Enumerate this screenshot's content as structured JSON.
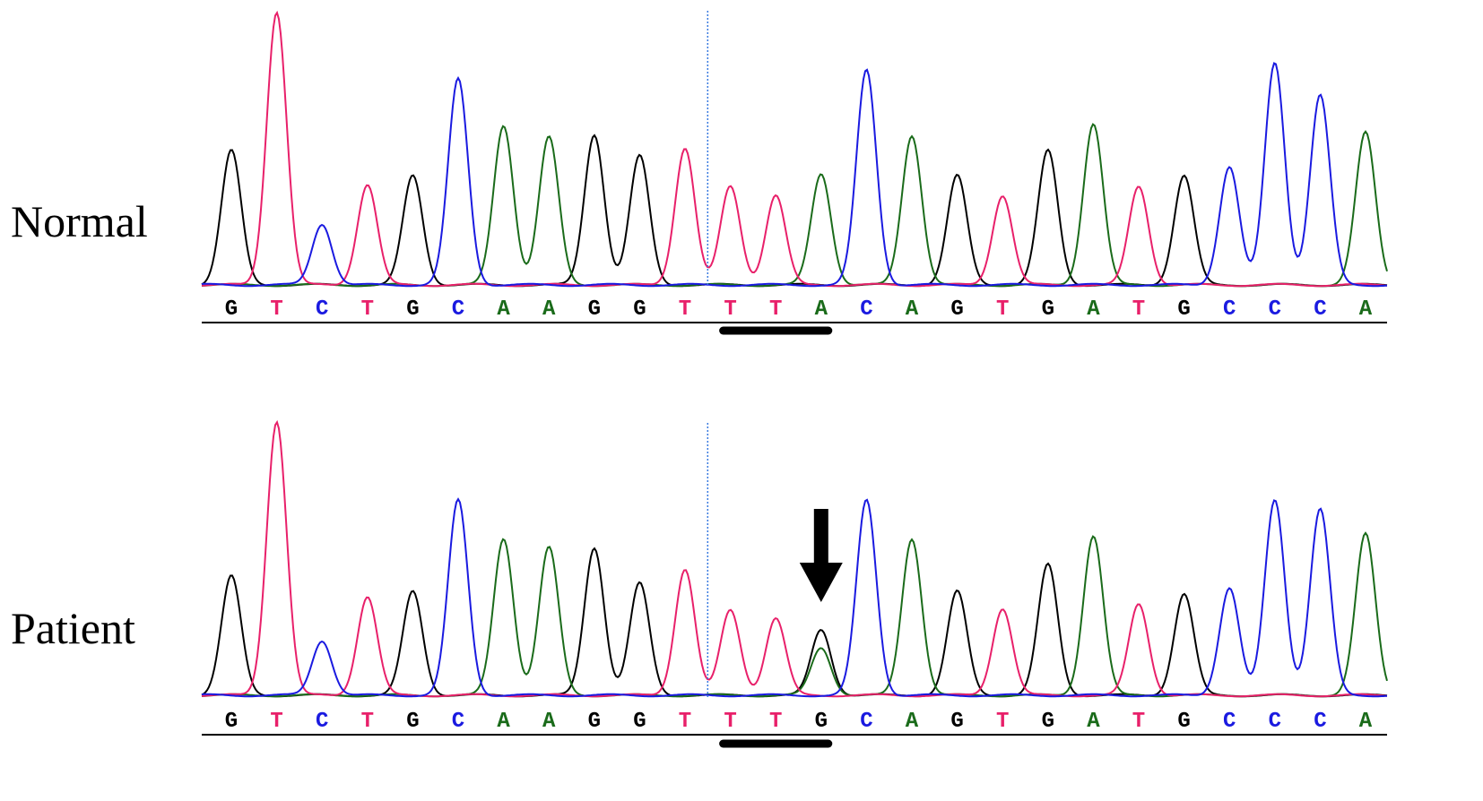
{
  "colors": {
    "G": "#000000",
    "A": "#1a6b1a",
    "T": "#e8206a",
    "C": "#1a1ae0",
    "cursor": "#3a7be0",
    "annotation": "#000000"
  },
  "chart_data": [
    {
      "type": "line",
      "title": "Normal",
      "sequence": [
        "G",
        "T",
        "C",
        "T",
        "G",
        "C",
        "A",
        "A",
        "G",
        "G",
        "T",
        "T",
        "T",
        "A",
        "C",
        "A",
        "G",
        "T",
        "G",
        "A",
        "T",
        "G",
        "C",
        "C",
        "C",
        "A"
      ],
      "peak_heights": [
        150,
        305,
        68,
        112,
        122,
        230,
        178,
        165,
        168,
        144,
        153,
        110,
        100,
        124,
        240,
        167,
        122,
        100,
        150,
        180,
        110,
        122,
        132,
        248,
        212,
        170
      ],
      "secondary_peaks": [],
      "cursor_position": 11,
      "underlined_bases": [
        12,
        14
      ],
      "grid": false
    },
    {
      "type": "line",
      "title": "Patient",
      "sequence": [
        "G",
        "T",
        "C",
        "T",
        "G",
        "C",
        "A",
        "A",
        "G",
        "G",
        "T",
        "T",
        "T",
        "G",
        "C",
        "A",
        "G",
        "T",
        "G",
        "A",
        "T",
        "G",
        "C",
        "C",
        "C",
        "A"
      ],
      "peak_heights": [
        133,
        306,
        61,
        110,
        116,
        218,
        175,
        165,
        165,
        125,
        141,
        95,
        86,
        73,
        218,
        175,
        116,
        97,
        146,
        178,
        102,
        113,
        120,
        218,
        208,
        180
      ],
      "secondary_peaks": [
        {
          "position": 14,
          "base": "A",
          "height": 53
        }
      ],
      "cursor_position": 11,
      "underlined_bases": [
        12,
        14
      ],
      "mutation_arrow_position": 14,
      "grid": false
    }
  ]
}
